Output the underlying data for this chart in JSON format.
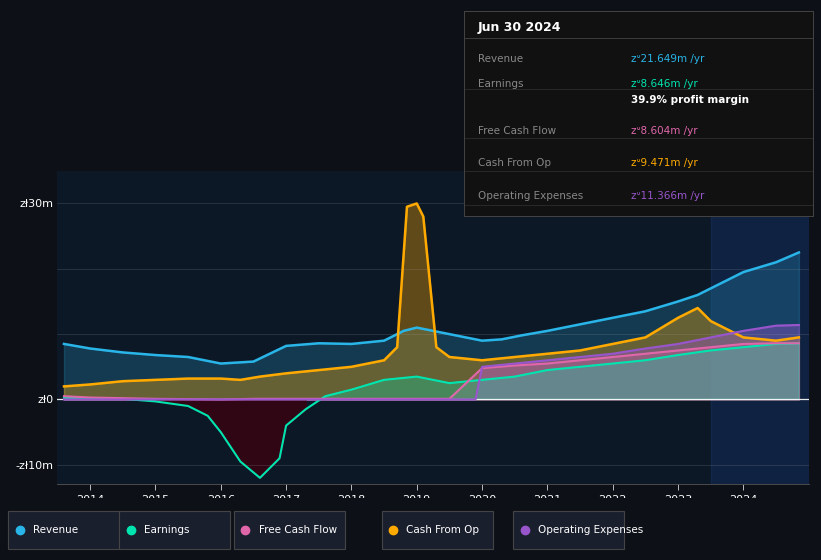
{
  "bg_color": "#0d1117",
  "plot_bg_color": "#0d1827",
  "title": "Jun 30 2024",
  "ylim": [
    -13,
    35
  ],
  "xlim": [
    2013.5,
    2025.0
  ],
  "xticks": [
    2014,
    2015,
    2016,
    2017,
    2018,
    2019,
    2020,
    2021,
    2022,
    2023,
    2024
  ],
  "info_box": {
    "title": "Jun 30 2024",
    "rows": [
      {
        "label": "Revenue",
        "value": "zᐡ21.649m /yr",
        "value_color": "#29b5e8"
      },
      {
        "label": "Earnings",
        "value": "zᐡ8.646m /yr",
        "value_color": "#00e5b0"
      },
      {
        "label": "",
        "value": "39.9% profit margin",
        "value_color": "#ffffff",
        "bold": true
      },
      {
        "label": "Free Cash Flow",
        "value": "zᐡ8.604m /yr",
        "value_color": "#e066aa"
      },
      {
        "label": "Cash From Op",
        "value": "zᐡ9.471m /yr",
        "value_color": "#ffaa00"
      },
      {
        "label": "Operating Expenses",
        "value": "zᐡ11.366m /yr",
        "value_color": "#9955cc"
      }
    ]
  },
  "series": {
    "revenue": {
      "color": "#29b5e8",
      "label": "Revenue"
    },
    "earnings": {
      "color": "#00e5b0",
      "label": "Earnings"
    },
    "free_cash_flow": {
      "color": "#e066aa",
      "label": "Free Cash Flow"
    },
    "cash_from_op": {
      "color": "#ffaa00",
      "label": "Cash From Op"
    },
    "operating_expenses": {
      "color": "#9955cc",
      "label": "Operating Expenses"
    }
  },
  "legend": {
    "items": [
      {
        "label": "Revenue",
        "color": "#29b5e8"
      },
      {
        "label": "Earnings",
        "color": "#00e5b0"
      },
      {
        "label": "Free Cash Flow",
        "color": "#e066aa"
      },
      {
        "label": "Cash From Op",
        "color": "#ffaa00"
      },
      {
        "label": "Operating Expenses",
        "color": "#9955cc"
      }
    ]
  }
}
